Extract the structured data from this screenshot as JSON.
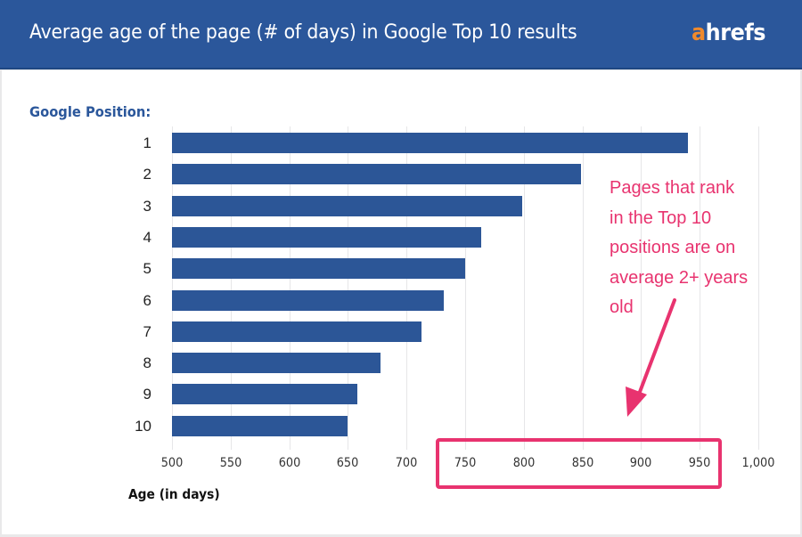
{
  "header": {
    "title": "Average age of the page (# of days) in Google Top 10 results",
    "logo_accent": "a",
    "logo_rest": "hrefs"
  },
  "colors": {
    "header_bg": "#2b579b",
    "bar": "#2c5697",
    "logo_accent": "#f08a2c",
    "annotation": "#e8336f"
  },
  "chart": {
    "y_title": "Google Position:",
    "x_title": "Age (in days)",
    "annotation_lines": [
      "Pages that rank",
      "in the Top 10",
      "positions are on",
      "average 2+ years",
      "old"
    ],
    "tick_labels": [
      "500",
      "550",
      "600",
      "650",
      "700",
      "750",
      "800",
      "850",
      "900",
      "950",
      "1,000"
    ],
    "category_labels": [
      "1",
      "2",
      "3",
      "4",
      "5",
      "6",
      "7",
      "8",
      "9",
      "10"
    ]
  },
  "chart_data": {
    "type": "bar",
    "orientation": "horizontal",
    "title": "Average age of the page (# of days) in Google Top 10 results",
    "categories": [
      "1",
      "2",
      "3",
      "4",
      "5",
      "6",
      "7",
      "8",
      "9",
      "10"
    ],
    "values": [
      940,
      849,
      799,
      764,
      750,
      732,
      713,
      678,
      658,
      650
    ],
    "xlabel": "Age (in days)",
    "ylabel": "Google Position:",
    "xlim": [
      500,
      1000
    ],
    "xticks": [
      500,
      550,
      600,
      650,
      700,
      750,
      800,
      850,
      900,
      950,
      1000
    ],
    "grid": true,
    "legend": null,
    "annotations": [
      {
        "text": "Pages that rank in the Top 10 positions are on average 2+ years old",
        "highlighted_ticks": [
          750,
          800,
          850,
          900,
          950
        ]
      }
    ]
  }
}
